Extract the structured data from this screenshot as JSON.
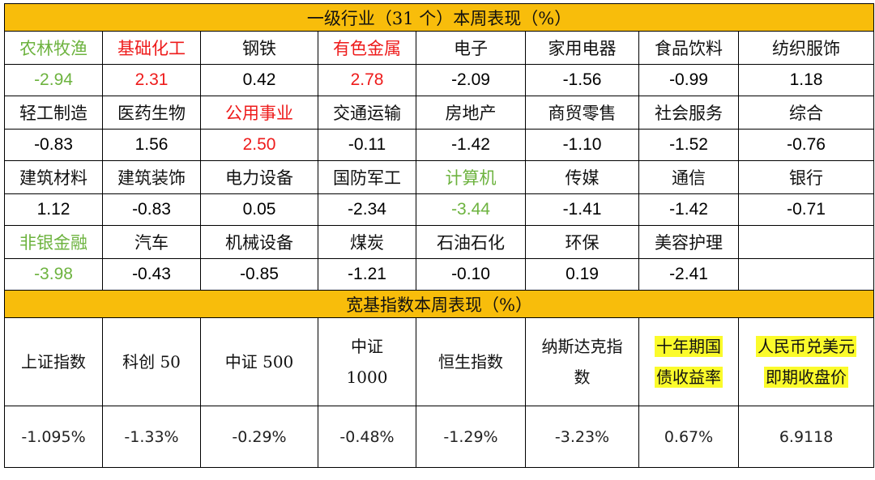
{
  "header1": "一级行业（31 个）本周表现（%）",
  "header2": "宽基指数本周表现（%）",
  "colors": {
    "header_bg": "#f8bd0b",
    "up_red": "#ee1b1b",
    "down_green": "#6db33f",
    "highlight_yellow": "#fbfb2b"
  },
  "industries": [
    [
      {
        "name": "农林牧渔",
        "value": "-2.94",
        "style": "green"
      },
      {
        "name": "基础化工",
        "value": "2.31",
        "style": "red"
      },
      {
        "name": "钢铁",
        "value": "0.42",
        "style": "normal"
      },
      {
        "name": "有色金属",
        "value": "2.78",
        "style": "red"
      },
      {
        "name": "电子",
        "value": "-2.09",
        "style": "normal"
      },
      {
        "name": "家用电器",
        "value": "-1.56",
        "style": "normal"
      },
      {
        "name": "食品饮料",
        "value": "-0.99",
        "style": "normal"
      },
      {
        "name": "纺织服饰",
        "value": "1.18",
        "style": "normal"
      }
    ],
    [
      {
        "name": "轻工制造",
        "value": "-0.83",
        "style": "normal"
      },
      {
        "name": "医药生物",
        "value": "1.56",
        "style": "normal"
      },
      {
        "name": "公用事业",
        "value": "2.50",
        "style": "red"
      },
      {
        "name": "交通运输",
        "value": "-0.11",
        "style": "normal"
      },
      {
        "name": "房地产",
        "value": "-1.42",
        "style": "normal"
      },
      {
        "name": "商贸零售",
        "value": "-1.10",
        "style": "normal"
      },
      {
        "name": "社会服务",
        "value": "-1.52",
        "style": "normal"
      },
      {
        "name": "综合",
        "value": "-0.76",
        "style": "normal"
      }
    ],
    [
      {
        "name": "建筑材料",
        "value": "1.12",
        "style": "normal"
      },
      {
        "name": "建筑装饰",
        "value": "-0.83",
        "style": "normal"
      },
      {
        "name": "电力设备",
        "value": "0.05",
        "style": "normal"
      },
      {
        "name": "国防军工",
        "value": "-2.34",
        "style": "normal"
      },
      {
        "name": "计算机",
        "value": "-3.44",
        "style": "green"
      },
      {
        "name": "传媒",
        "value": "-1.41",
        "style": "normal"
      },
      {
        "name": "通信",
        "value": "-1.42",
        "style": "normal"
      },
      {
        "name": "银行",
        "value": "-0.71",
        "style": "normal"
      }
    ],
    [
      {
        "name": "非银金融",
        "value": "-3.98",
        "style": "green"
      },
      {
        "name": "汽车",
        "value": "-0.43",
        "style": "normal"
      },
      {
        "name": "机械设备",
        "value": "-0.85",
        "style": "normal"
      },
      {
        "name": "煤炭",
        "value": "-1.21",
        "style": "normal"
      },
      {
        "name": "石油石化",
        "value": "-0.10",
        "style": "normal"
      },
      {
        "name": "环保",
        "value": "0.19",
        "style": "normal"
      },
      {
        "name": "美容护理",
        "value": "-2.41",
        "style": "normal"
      },
      {
        "name": "",
        "value": "",
        "style": "normal"
      }
    ]
  ],
  "indices": [
    {
      "name_lines": [
        "上证指数"
      ],
      "value": "-1.095%",
      "highlight": false
    },
    {
      "name_lines": [
        "科创 50"
      ],
      "value": "-1.33%",
      "highlight": false
    },
    {
      "name_lines": [
        "中证 500"
      ],
      "value": "-0.29%",
      "highlight": false
    },
    {
      "name_lines": [
        "中证",
        "1000"
      ],
      "value": "-0.48%",
      "highlight": false
    },
    {
      "name_lines": [
        "恒生指数"
      ],
      "value": "-1.29%",
      "highlight": false
    },
    {
      "name_lines": [
        "纳斯达克指",
        "数"
      ],
      "value": "-3.23%",
      "highlight": false
    },
    {
      "name_lines": [
        "十年期国",
        "债收益率"
      ],
      "value": "0.67%",
      "highlight": true
    },
    {
      "name_lines": [
        "人民币兑美元",
        "即期收盘价"
      ],
      "value": "6.9118",
      "highlight": true
    }
  ]
}
